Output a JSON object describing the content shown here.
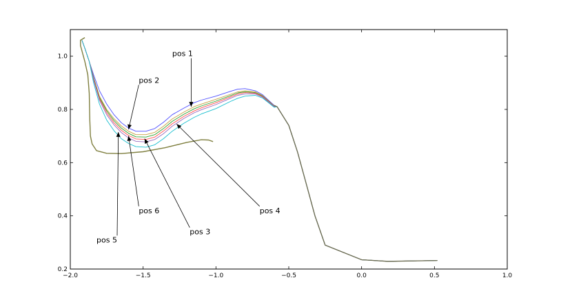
{
  "chart_data": {
    "type": "line",
    "title": "",
    "xlabel": "",
    "ylabel": "",
    "xlim": [
      -2.0,
      1.0
    ],
    "ylim": [
      0.2,
      1.1
    ],
    "grid": false,
    "xticks": [
      -2.0,
      -1.5,
      -1.0,
      -0.5,
      0.0,
      0.5,
      1.0
    ],
    "xtick_labels": [
      "−2.0",
      "−1.5",
      "−1.0",
      "−0.5",
      "0.0",
      "0.5",
      "1.0"
    ],
    "yticks": [
      0.2,
      0.4,
      0.6,
      0.8,
      1.0
    ],
    "ytick_labels": [
      "0.2",
      "0.4",
      "0.6",
      "0.8",
      "1.0"
    ],
    "common_tail": [
      [
        -0.8,
        0.87
      ],
      [
        -0.72,
        0.866
      ],
      [
        -0.65,
        0.85
      ],
      [
        -0.58,
        0.81
      ],
      [
        -0.5,
        0.74
      ],
      [
        -0.44,
        0.64
      ],
      [
        -0.38,
        0.52
      ],
      [
        -0.32,
        0.4
      ],
      [
        -0.25,
        0.29
      ],
      [
        0.0,
        0.235
      ],
      [
        0.18,
        0.229
      ],
      [
        0.52,
        0.232
      ]
    ],
    "series": [
      {
        "color": "#4d4dff",
        "points": [
          [
            -1.92,
            1.06
          ],
          [
            -1.9,
            1.03
          ],
          [
            -1.87,
            0.98
          ],
          [
            -1.84,
            0.93
          ],
          [
            -1.8,
            0.87
          ],
          [
            -1.75,
            0.82
          ],
          [
            -1.7,
            0.78
          ],
          [
            -1.65,
            0.75
          ],
          [
            -1.6,
            0.73
          ],
          [
            -1.55,
            0.718
          ],
          [
            -1.48,
            0.718
          ],
          [
            -1.42,
            0.728
          ],
          [
            -1.36,
            0.752
          ],
          [
            -1.3,
            0.78
          ],
          [
            -1.22,
            0.805
          ],
          [
            -1.15,
            0.825
          ],
          [
            -1.1,
            0.835
          ],
          [
            -1.0,
            0.85
          ],
          [
            -0.9,
            0.868
          ],
          [
            -0.85,
            0.876
          ],
          [
            -0.8,
            0.878
          ],
          [
            -0.73,
            0.87
          ],
          [
            -0.68,
            0.855
          ],
          [
            -0.6,
            0.815
          ]
        ]
      },
      {
        "color": "#c8a040",
        "points": [
          [
            -1.92,
            1.06
          ],
          [
            -1.9,
            1.03
          ],
          [
            -1.87,
            0.98
          ],
          [
            -1.84,
            0.92
          ],
          [
            -1.8,
            0.85
          ],
          [
            -1.75,
            0.8
          ],
          [
            -1.7,
            0.765
          ],
          [
            -1.65,
            0.738
          ],
          [
            -1.6,
            0.718
          ],
          [
            -1.55,
            0.705
          ],
          [
            -1.48,
            0.705
          ],
          [
            -1.42,
            0.714
          ],
          [
            -1.36,
            0.737
          ],
          [
            -1.3,
            0.764
          ],
          [
            -1.22,
            0.79
          ],
          [
            -1.15,
            0.81
          ],
          [
            -1.1,
            0.82
          ],
          [
            -1.0,
            0.838
          ],
          [
            -0.9,
            0.857
          ],
          [
            -0.85,
            0.866
          ],
          [
            -0.8,
            0.87
          ],
          [
            -0.73,
            0.866
          ],
          [
            -0.68,
            0.852
          ],
          [
            -0.6,
            0.813
          ]
        ]
      },
      {
        "color": "#2ca02c",
        "points": [
          [
            -1.92,
            1.06
          ],
          [
            -1.9,
            1.03
          ],
          [
            -1.87,
            0.98
          ],
          [
            -1.84,
            0.92
          ],
          [
            -1.8,
            0.845
          ],
          [
            -1.75,
            0.795
          ],
          [
            -1.7,
            0.758
          ],
          [
            -1.65,
            0.73
          ],
          [
            -1.6,
            0.71
          ],
          [
            -1.55,
            0.697
          ],
          [
            -1.48,
            0.696
          ],
          [
            -1.42,
            0.705
          ],
          [
            -1.36,
            0.728
          ],
          [
            -1.3,
            0.755
          ],
          [
            -1.22,
            0.782
          ],
          [
            -1.15,
            0.802
          ],
          [
            -1.1,
            0.813
          ],
          [
            -1.0,
            0.831
          ],
          [
            -0.9,
            0.852
          ],
          [
            -0.85,
            0.862
          ],
          [
            -0.8,
            0.866
          ],
          [
            -0.73,
            0.863
          ],
          [
            -0.68,
            0.85
          ],
          [
            -0.6,
            0.812
          ]
        ]
      },
      {
        "color": "#ff4d4d",
        "points": [
          [
            -1.92,
            1.06
          ],
          [
            -1.9,
            1.03
          ],
          [
            -1.87,
            0.98
          ],
          [
            -1.84,
            0.915
          ],
          [
            -1.8,
            0.84
          ],
          [
            -1.75,
            0.788
          ],
          [
            -1.7,
            0.75
          ],
          [
            -1.65,
            0.722
          ],
          [
            -1.6,
            0.702
          ],
          [
            -1.55,
            0.689
          ],
          [
            -1.48,
            0.687
          ],
          [
            -1.42,
            0.696
          ],
          [
            -1.36,
            0.719
          ],
          [
            -1.3,
            0.746
          ],
          [
            -1.22,
            0.774
          ],
          [
            -1.15,
            0.794
          ],
          [
            -1.1,
            0.806
          ],
          [
            -1.0,
            0.825
          ],
          [
            -0.9,
            0.847
          ],
          [
            -0.85,
            0.858
          ],
          [
            -0.8,
            0.863
          ],
          [
            -0.73,
            0.861
          ],
          [
            -0.68,
            0.848
          ],
          [
            -0.6,
            0.811
          ]
        ]
      },
      {
        "color": "#9467bd",
        "points": [
          [
            -1.92,
            1.06
          ],
          [
            -1.9,
            1.03
          ],
          [
            -1.87,
            0.98
          ],
          [
            -1.84,
            0.91
          ],
          [
            -1.8,
            0.835
          ],
          [
            -1.75,
            0.78
          ],
          [
            -1.7,
            0.742
          ],
          [
            -1.65,
            0.713
          ],
          [
            -1.6,
            0.693
          ],
          [
            -1.55,
            0.68
          ],
          [
            -1.48,
            0.678
          ],
          [
            -1.42,
            0.687
          ],
          [
            -1.36,
            0.709
          ],
          [
            -1.3,
            0.737
          ],
          [
            -1.22,
            0.766
          ],
          [
            -1.15,
            0.787
          ],
          [
            -1.1,
            0.799
          ],
          [
            -1.0,
            0.818
          ],
          [
            -0.9,
            0.842
          ],
          [
            -0.85,
            0.853
          ],
          [
            -0.8,
            0.858
          ],
          [
            -0.73,
            0.858
          ],
          [
            -0.68,
            0.846
          ],
          [
            -0.6,
            0.81
          ]
        ]
      },
      {
        "color": "#17becf",
        "points": [
          [
            -1.92,
            1.06
          ],
          [
            -1.9,
            1.03
          ],
          [
            -1.87,
            0.98
          ],
          [
            -1.84,
            0.9
          ],
          [
            -1.8,
            0.82
          ],
          [
            -1.75,
            0.76
          ],
          [
            -1.7,
            0.72
          ],
          [
            -1.65,
            0.69
          ],
          [
            -1.6,
            0.672
          ],
          [
            -1.55,
            0.66
          ],
          [
            -1.48,
            0.658
          ],
          [
            -1.42,
            0.667
          ],
          [
            -1.36,
            0.69
          ],
          [
            -1.3,
            0.718
          ],
          [
            -1.22,
            0.748
          ],
          [
            -1.15,
            0.77
          ],
          [
            -1.1,
            0.783
          ],
          [
            -1.0,
            0.803
          ],
          [
            -0.9,
            0.83
          ],
          [
            -0.85,
            0.842
          ],
          [
            -0.8,
            0.85
          ],
          [
            -0.73,
            0.853
          ],
          [
            -0.68,
            0.843
          ],
          [
            -0.6,
            0.808
          ]
        ]
      },
      {
        "color": "#7f7f3f",
        "points": [
          [
            -1.9,
            1.07
          ],
          [
            -1.93,
            1.06
          ],
          [
            -1.93,
            1.04
          ],
          [
            -1.9,
            0.98
          ],
          [
            -1.88,
            0.93
          ],
          [
            -1.87,
            0.86
          ],
          [
            -1.866,
            0.76
          ],
          [
            -1.862,
            0.7
          ],
          [
            -1.85,
            0.67
          ],
          [
            -1.82,
            0.645
          ],
          [
            -1.75,
            0.635
          ],
          [
            -1.65,
            0.634
          ],
          [
            -1.5,
            0.641
          ],
          [
            -1.35,
            0.656
          ],
          [
            -1.2,
            0.676
          ],
          [
            -1.1,
            0.686
          ],
          [
            -1.05,
            0.685
          ],
          [
            -1.02,
            0.679
          ]
        ]
      }
    ],
    "annotations": [
      {
        "text": "pos 1",
        "xytext": [
          -1.3,
          1.0
        ],
        "xy": [
          -1.17,
          0.81
        ]
      },
      {
        "text": "pos 2",
        "xytext": [
          -1.53,
          0.9
        ],
        "xy": [
          -1.6,
          0.725
        ]
      },
      {
        "text": "pos 3",
        "xytext": [
          -1.18,
          0.33
        ],
        "xy": [
          -1.49,
          0.69
        ]
      },
      {
        "text": "pos 4",
        "xytext": [
          -0.7,
          0.41
        ],
        "xy": [
          -1.27,
          0.745
        ]
      },
      {
        "text": "pos 5",
        "xytext": [
          -1.82,
          0.3
        ],
        "xy": [
          -1.67,
          0.715
        ]
      },
      {
        "text": "pos 6",
        "xytext": [
          -1.53,
          0.41
        ],
        "xy": [
          -1.6,
          0.7
        ]
      }
    ]
  }
}
